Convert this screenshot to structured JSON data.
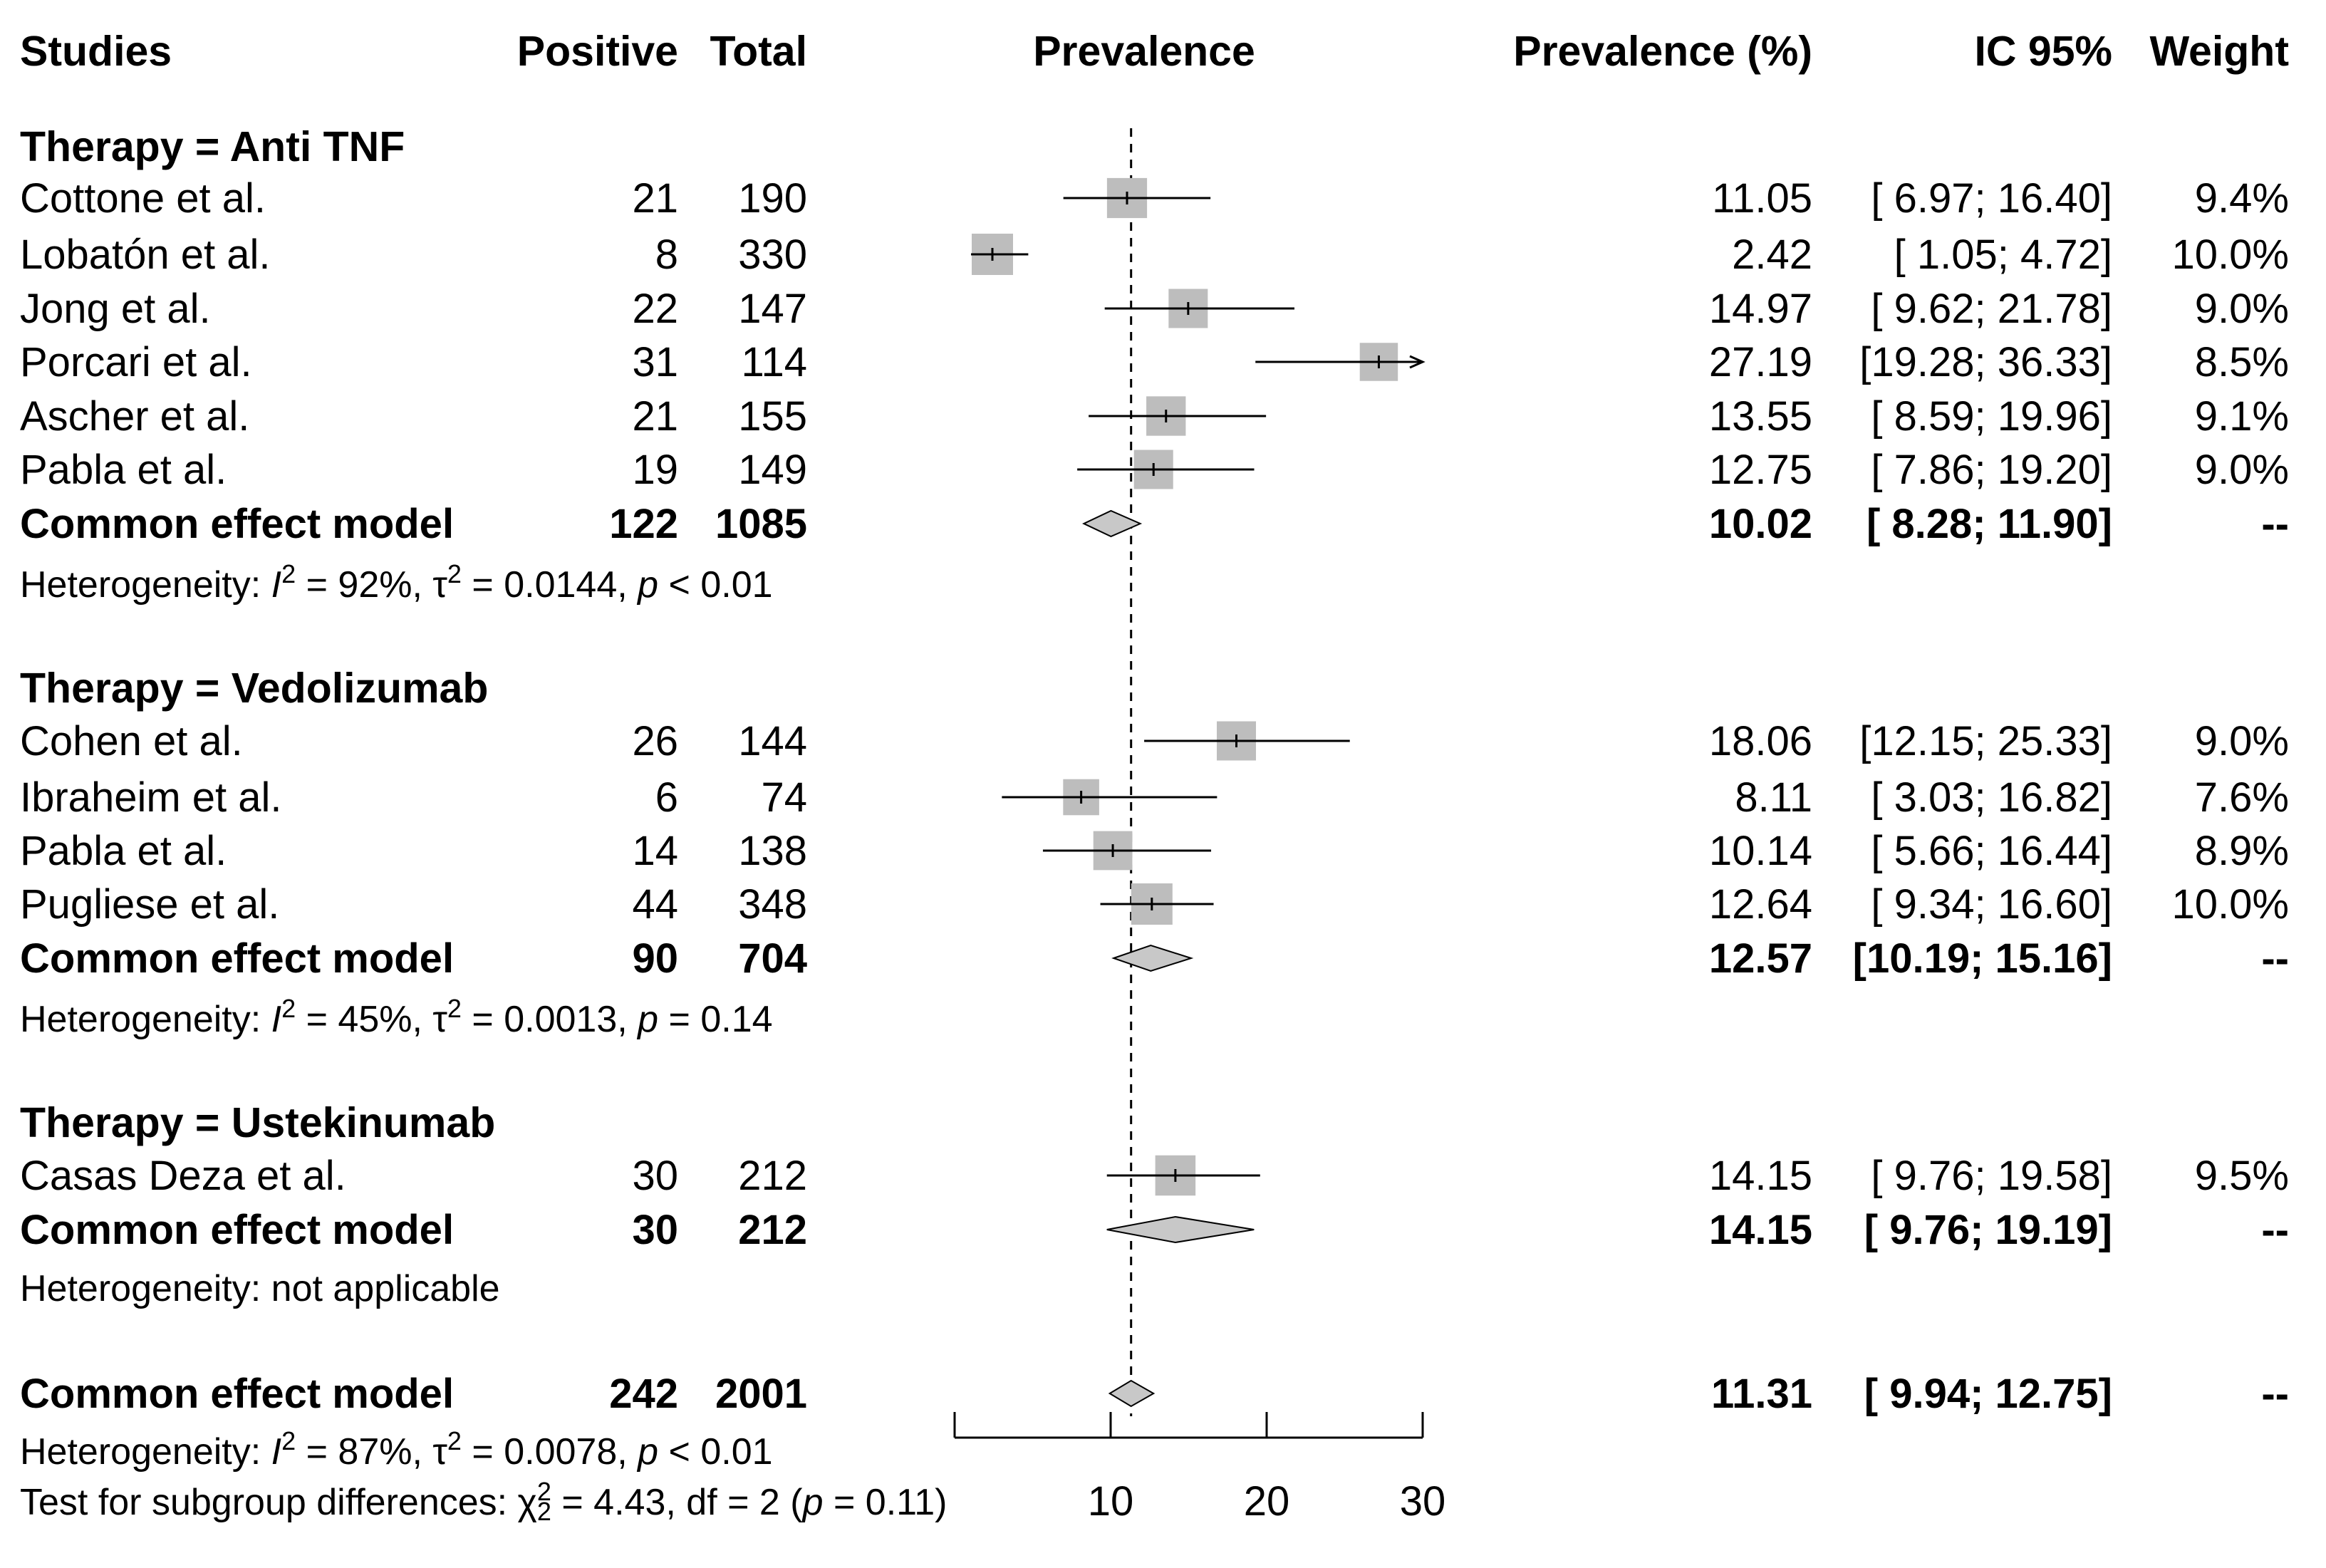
{
  "chart_data": {
    "type": "forest",
    "title": "",
    "xlabel": "",
    "ylabel": "",
    "xlim": [
      0,
      30
    ],
    "xticks": [
      10,
      20,
      30
    ],
    "reference_line": 11.31,
    "reference_style": "dashed",
    "headers": {
      "studies": "Studies",
      "positive": "Positive",
      "total": "Total",
      "plot": "Prevalence",
      "pct": "Prevalence (%)",
      "ci": "IC 95%",
      "weight": "Weight"
    },
    "subgroups": [
      {
        "label": "Therapy = Anti TNF",
        "studies": [
          {
            "name": "Cottone et al.",
            "positive": "21",
            "total": "190",
            "est": 11.05,
            "lo": 6.97,
            "hi": 16.4,
            "est_text": "11.05",
            "ci_text": "[ 6.97; 16.40]",
            "weight": "9.4%",
            "wval": 9.4
          },
          {
            "name": "Lobatón et al.",
            "positive": "8",
            "total": "330",
            "est": 2.42,
            "lo": 1.05,
            "hi": 4.72,
            "est_text": "2.42",
            "ci_text": "[ 1.05;  4.72]",
            "weight": "10.0%",
            "wval": 10.0
          },
          {
            "name": "Jong et al.",
            "positive": "22",
            "total": "147",
            "est": 14.97,
            "lo": 9.62,
            "hi": 21.78,
            "est_text": "14.97",
            "ci_text": "[ 9.62; 21.78]",
            "weight": "9.0%",
            "wval": 9.0
          },
          {
            "name": "Porcari et al.",
            "positive": "31",
            "total": "114",
            "est": 27.19,
            "lo": 19.28,
            "hi": 36.33,
            "est_text": "27.19",
            "ci_text": "[19.28; 36.33]",
            "weight": "8.5%",
            "wval": 8.5,
            "arrow": true
          },
          {
            "name": "Ascher et al.",
            "positive": "21",
            "total": "155",
            "est": 13.55,
            "lo": 8.59,
            "hi": 19.96,
            "est_text": "13.55",
            "ci_text": "[ 8.59; 19.96]",
            "weight": "9.1%",
            "wval": 9.1
          },
          {
            "name": "Pabla et al.",
            "positive": "19",
            "total": "149",
            "est": 12.75,
            "lo": 7.86,
            "hi": 19.2,
            "est_text": "12.75",
            "ci_text": "[ 7.86; 19.20]",
            "weight": "9.0%",
            "wval": 9.0
          }
        ],
        "pooled": {
          "name": "Common effect model",
          "positive": "122",
          "total": "1085",
          "est": 10.02,
          "lo": 8.28,
          "hi": 11.9,
          "est_text": "10.02",
          "ci_text": "[ 8.28; 11.90]",
          "weight": "--"
        },
        "het": {
          "prefix": "Heterogeneity: ",
          "i2": "I",
          "i2sup": "2",
          "i2val": " = 92%, ",
          "tau": "τ",
          "tausup": "2",
          "tauval": " = 0.0144, ",
          "p": "p",
          "pval": " < 0.01"
        }
      },
      {
        "label": "Therapy = Vedolizumab",
        "studies": [
          {
            "name": "Cohen et al.",
            "positive": "26",
            "total": "144",
            "est": 18.06,
            "lo": 12.15,
            "hi": 25.33,
            "est_text": "18.06",
            "ci_text": "[12.15; 25.33]",
            "weight": "9.0%",
            "wval": 9.0
          },
          {
            "name": "Ibraheim et al.",
            "positive": "6",
            "total": "74",
            "est": 8.11,
            "lo": 3.03,
            "hi": 16.82,
            "est_text": "8.11",
            "ci_text": "[ 3.03; 16.82]",
            "weight": "7.6%",
            "wval": 7.6
          },
          {
            "name": "Pabla et al.",
            "positive": "14",
            "total": "138",
            "est": 10.14,
            "lo": 5.66,
            "hi": 16.44,
            "est_text": "10.14",
            "ci_text": "[ 5.66; 16.44]",
            "weight": "8.9%",
            "wval": 8.9
          },
          {
            "name": "Pugliese et al.",
            "positive": "44",
            "total": "348",
            "est": 12.64,
            "lo": 9.34,
            "hi": 16.6,
            "est_text": "12.64",
            "ci_text": "[ 9.34; 16.60]",
            "weight": "10.0%",
            "wval": 10.0
          }
        ],
        "pooled": {
          "name": "Common effect model",
          "positive": "90",
          "total": "704",
          "est": 12.57,
          "lo": 10.19,
          "hi": 15.16,
          "est_text": "12.57",
          "ci_text": "[10.19; 15.16]",
          "weight": "--"
        },
        "het": {
          "prefix": "Heterogeneity: ",
          "i2": "I",
          "i2sup": "2",
          "i2val": " = 45%, ",
          "tau": "τ",
          "tausup": "2",
          "tauval": " = 0.0013, ",
          "p": "p",
          "pval": " = 0.14"
        }
      },
      {
        "label": "Therapy = Ustekinumab",
        "studies": [
          {
            "name": "Casas Deza et al.",
            "positive": "30",
            "total": "212",
            "est": 14.15,
            "lo": 9.76,
            "hi": 19.58,
            "est_text": "14.15",
            "ci_text": "[ 9.76; 19.58]",
            "weight": "9.5%",
            "wval": 9.5
          }
        ],
        "pooled": {
          "name": "Common effect model",
          "positive": "30",
          "total": "212",
          "est": 14.15,
          "lo": 9.76,
          "hi": 19.19,
          "est_text": "14.15",
          "ci_text": "[ 9.76; 19.19]",
          "weight": "--"
        },
        "het": {
          "plain": "Heterogeneity: not applicable"
        }
      }
    ],
    "overall": {
      "name": "Common effect model",
      "positive": "242",
      "total": "2001",
      "est": 11.31,
      "lo": 9.94,
      "hi": 12.75,
      "est_text": "11.31",
      "ci_text": "[ 9.94; 12.75]",
      "weight": "--"
    },
    "overall_het": {
      "prefix": "Heterogeneity: ",
      "i2": "I",
      "i2sup": "2",
      "i2val": " = 87%, ",
      "tau": "τ",
      "tausup": "2",
      "tauval": " = 0.0078, ",
      "p": "p",
      "pval": " < 0.01"
    },
    "subgroup_test": {
      "prefix": "Test for subgroup differences: ",
      "chi": "χ",
      "chisup": "2",
      "chisub": "2",
      "rest": " = 4.43, df = 2 (",
      "p": "p",
      "pval": " = 0.11)"
    },
    "colors": {
      "square": "#bdbdbd",
      "diamond": "#c8c8c8",
      "line": "#000000"
    }
  }
}
